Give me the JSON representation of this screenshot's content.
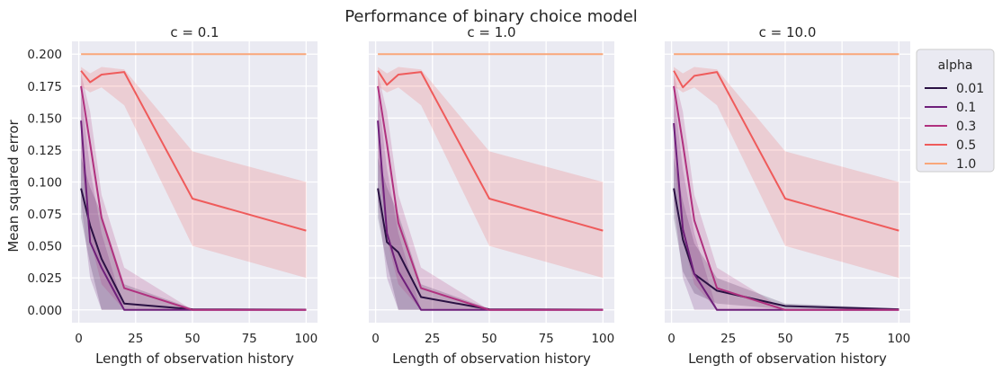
{
  "figure": {
    "title": "Performance of binary choice model",
    "ylabel": "Mean squared error",
    "legend_title": "alpha"
  },
  "chart_data": [
    {
      "type": "line",
      "title": "c = 0.1",
      "xlabel": "Length of observation history",
      "ylabel": "Mean squared error",
      "xlim": [
        -3,
        105
      ],
      "ylim": [
        -0.01,
        0.21
      ],
      "xticks": [
        0,
        25,
        50,
        75,
        100
      ],
      "yticks": [
        0.0,
        0.025,
        0.05,
        0.075,
        0.1,
        0.125,
        0.15,
        0.175,
        0.2
      ],
      "ytick_labels": [
        "0.000",
        "0.025",
        "0.050",
        "0.075",
        "0.100",
        "0.125",
        "0.150",
        "0.175",
        "0.200"
      ],
      "grid": true,
      "x": [
        1,
        5,
        10,
        20,
        50,
        100
      ],
      "series": [
        {
          "name": "0.01",
          "color": "#2a1143",
          "values": [
            0.095,
            0.066,
            0.04,
            0.005,
            0.0005,
            0.0002
          ],
          "lower": [
            0.072,
            0.036,
            0.0,
            0.0,
            0.0,
            0.0
          ],
          "upper": [
            0.119,
            0.096,
            0.075,
            0.02,
            0.001,
            0.0004
          ]
        },
        {
          "name": "0.1",
          "color": "#6e1f7a",
          "values": [
            0.148,
            0.053,
            0.033,
            0.0,
            0.0,
            0.0
          ],
          "lower": [
            0.085,
            0.025,
            0.0,
            0.0,
            0.0,
            0.0
          ],
          "upper": [
            0.17,
            0.11,
            0.06,
            0.0,
            0.0,
            0.0
          ]
        },
        {
          "name": "0.3",
          "color": "#b0317f",
          "values": [
            0.175,
            0.13,
            0.072,
            0.017,
            0.0,
            0.0
          ],
          "lower": [
            0.12,
            0.055,
            0.02,
            0.0,
            0.0,
            0.0
          ],
          "upper": [
            0.185,
            0.155,
            0.09,
            0.033,
            0.0,
            0.0
          ]
        },
        {
          "name": "0.5",
          "color": "#ef5b5b",
          "values": [
            0.187,
            0.178,
            0.184,
            0.186,
            0.087,
            0.062
          ],
          "lower": [
            0.175,
            0.17,
            0.174,
            0.16,
            0.05,
            0.025
          ],
          "upper": [
            0.19,
            0.185,
            0.19,
            0.188,
            0.124,
            0.1
          ]
        },
        {
          "name": "1.0",
          "color": "#f9a77a",
          "values": [
            0.2,
            0.2,
            0.2,
            0.2,
            0.2,
            0.2
          ],
          "lower": [
            0.2,
            0.2,
            0.2,
            0.2,
            0.2,
            0.2
          ],
          "upper": [
            0.2,
            0.2,
            0.2,
            0.2,
            0.2,
            0.2
          ]
        }
      ]
    },
    {
      "type": "line",
      "title": "c = 1.0",
      "xlabel": "Length of observation history",
      "ylabel": "",
      "xlim": [
        -3,
        105
      ],
      "ylim": [
        -0.01,
        0.21
      ],
      "xticks": [
        0,
        25,
        50,
        75,
        100
      ],
      "yticks": [
        0.0,
        0.025,
        0.05,
        0.075,
        0.1,
        0.125,
        0.15,
        0.175,
        0.2
      ],
      "ytick_labels": [],
      "grid": true,
      "x": [
        1,
        5,
        10,
        20,
        50,
        100
      ],
      "series": [
        {
          "name": "0.01",
          "color": "#2a1143",
          "values": [
            0.095,
            0.053,
            0.045,
            0.01,
            0.0005,
            0.0002
          ],
          "lower": [
            0.072,
            0.036,
            0.0,
            0.0,
            0.0,
            0.0
          ],
          "upper": [
            0.119,
            0.096,
            0.075,
            0.02,
            0.001,
            0.0004
          ]
        },
        {
          "name": "0.1",
          "color": "#6e1f7a",
          "values": [
            0.148,
            0.06,
            0.03,
            0.0,
            0.0,
            0.0
          ],
          "lower": [
            0.085,
            0.025,
            0.0,
            0.0,
            0.0,
            0.0
          ],
          "upper": [
            0.17,
            0.11,
            0.06,
            0.0,
            0.0,
            0.0
          ]
        },
        {
          "name": "0.3",
          "color": "#b0317f",
          "values": [
            0.175,
            0.13,
            0.068,
            0.017,
            0.0,
            0.0
          ],
          "lower": [
            0.12,
            0.055,
            0.02,
            0.0,
            0.0,
            0.0
          ],
          "upper": [
            0.185,
            0.155,
            0.09,
            0.033,
            0.0,
            0.0
          ]
        },
        {
          "name": "0.5",
          "color": "#ef5b5b",
          "values": [
            0.187,
            0.176,
            0.184,
            0.186,
            0.087,
            0.062
          ],
          "lower": [
            0.175,
            0.17,
            0.174,
            0.16,
            0.05,
            0.025
          ],
          "upper": [
            0.19,
            0.185,
            0.19,
            0.188,
            0.124,
            0.1
          ]
        },
        {
          "name": "1.0",
          "color": "#f9a77a",
          "values": [
            0.2,
            0.2,
            0.2,
            0.2,
            0.2,
            0.2
          ],
          "lower": [
            0.2,
            0.2,
            0.2,
            0.2,
            0.2,
            0.2
          ],
          "upper": [
            0.2,
            0.2,
            0.2,
            0.2,
            0.2,
            0.2
          ]
        }
      ]
    },
    {
      "type": "line",
      "title": "c = 10.0",
      "xlabel": "Length of observation history",
      "ylabel": "",
      "xlim": [
        -3,
        105
      ],
      "ylim": [
        -0.01,
        0.21
      ],
      "xticks": [
        0,
        25,
        50,
        75,
        100
      ],
      "yticks": [
        0.0,
        0.025,
        0.05,
        0.075,
        0.1,
        0.125,
        0.15,
        0.175,
        0.2
      ],
      "ytick_labels": [],
      "grid": true,
      "x": [
        1,
        5,
        10,
        20,
        50,
        100
      ],
      "series": [
        {
          "name": "0.01",
          "color": "#2a1143",
          "values": [
            0.095,
            0.055,
            0.028,
            0.015,
            0.003,
            0.0005
          ],
          "lower": [
            0.072,
            0.03,
            0.013,
            0.005,
            0.0005,
            0.0
          ],
          "upper": [
            0.119,
            0.085,
            0.052,
            0.025,
            0.005,
            0.001
          ]
        },
        {
          "name": "0.1",
          "color": "#6e1f7a",
          "values": [
            0.146,
            0.063,
            0.028,
            0.0,
            0.0,
            0.0
          ],
          "lower": [
            0.085,
            0.025,
            0.0,
            0.0,
            0.0,
            0.0
          ],
          "upper": [
            0.17,
            0.11,
            0.06,
            0.0,
            0.0,
            0.0
          ]
        },
        {
          "name": "0.3",
          "color": "#b0317f",
          "values": [
            0.175,
            0.13,
            0.07,
            0.017,
            0.0,
            0.0
          ],
          "lower": [
            0.12,
            0.055,
            0.02,
            0.0,
            0.0,
            0.0
          ],
          "upper": [
            0.185,
            0.155,
            0.09,
            0.033,
            0.0,
            0.0
          ]
        },
        {
          "name": "0.5",
          "color": "#ef5b5b",
          "values": [
            0.187,
            0.174,
            0.183,
            0.186,
            0.087,
            0.062
          ],
          "lower": [
            0.175,
            0.17,
            0.174,
            0.16,
            0.05,
            0.025
          ],
          "upper": [
            0.19,
            0.185,
            0.19,
            0.188,
            0.124,
            0.1
          ]
        },
        {
          "name": "1.0",
          "color": "#f9a77a",
          "values": [
            0.2,
            0.2,
            0.2,
            0.2,
            0.2,
            0.2
          ],
          "lower": [
            0.2,
            0.2,
            0.2,
            0.2,
            0.2,
            0.2
          ],
          "upper": [
            0.2,
            0.2,
            0.2,
            0.2,
            0.2,
            0.2
          ]
        }
      ]
    }
  ],
  "legend": {
    "title": "alpha",
    "placement": "outside right, top",
    "entries": [
      {
        "label": "0.01",
        "color": "#2a1143"
      },
      {
        "label": "0.1",
        "color": "#6e1f7a"
      },
      {
        "label": "0.3",
        "color": "#b0317f"
      },
      {
        "label": "0.5",
        "color": "#ef5b5b"
      },
      {
        "label": "1.0",
        "color": "#f9a77a"
      }
    ]
  },
  "style": {
    "plot_bg": "#eaeaf2",
    "grid_color": "#ffffff",
    "text_color": "#262626"
  }
}
